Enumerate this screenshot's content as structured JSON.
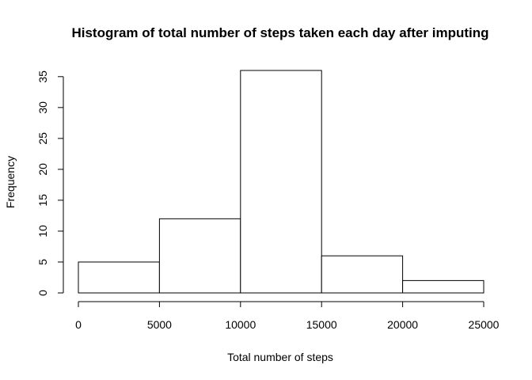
{
  "chart_data": {
    "type": "bar",
    "title": "Histogram of total number of steps taken each day after imputing",
    "xlabel": "Total number of steps",
    "ylabel": "Frequency",
    "bins": [
      {
        "start": 0,
        "end": 5000,
        "count": 5
      },
      {
        "start": 5000,
        "end": 10000,
        "count": 12
      },
      {
        "start": 10000,
        "end": 15000,
        "count": 36
      },
      {
        "start": 15000,
        "end": 20000,
        "count": 6
      },
      {
        "start": 20000,
        "end": 25000,
        "count": 2
      }
    ],
    "xlim": [
      0,
      25000
    ],
    "ylim": [
      0,
      36
    ],
    "xticks": [
      0,
      5000,
      10000,
      15000,
      20000,
      25000
    ],
    "yticks": [
      0,
      5,
      10,
      15,
      20,
      25,
      30,
      35
    ],
    "grid": false,
    "colors": {
      "bar_fill": "#ffffff",
      "bar_stroke": "#000000"
    }
  }
}
